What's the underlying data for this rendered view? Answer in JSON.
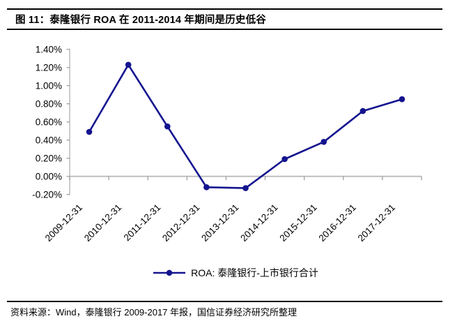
{
  "figure": {
    "title": "图 11：泰隆银行 ROA 在 2011-2014 年期间是历史低谷",
    "source_note": "资料来源：Wind，泰隆银行 2009-2017 年报，国信证券经济研究所整理"
  },
  "legend": {
    "label": "ROA:  泰隆银行-上市银行合计"
  },
  "chart_data": {
    "type": "line",
    "title": "泰隆银行 ROA 在 2011-2014 年期间是历史低谷",
    "categories": [
      "2009-12-31",
      "2010-12-31",
      "2011-12-31",
      "2012-12-31",
      "2013-12-31",
      "2014-12-31",
      "2015-12-31",
      "2016-12-31",
      "2017-12-31"
    ],
    "series": [
      {
        "name": "ROA: 泰隆银行-上市银行合计",
        "values": [
          0.49,
          1.23,
          0.55,
          -0.12,
          -0.13,
          0.19,
          0.38,
          0.72,
          0.85
        ]
      }
    ],
    "unit": "%",
    "xlabel": "",
    "ylabel": "",
    "ylim": [
      -0.2,
      1.4
    ],
    "y_tick_labels": [
      "1.40%",
      "1.20%",
      "1.00%",
      "0.80%",
      "0.60%",
      "0.40%",
      "0.20%",
      "0.00%",
      "-0.20%"
    ],
    "grid": false,
    "legend_position": "bottom",
    "line_color": "#14148f",
    "marker": "circle",
    "axis_color": "#bfbfbf",
    "tick_color": "#a6a6a6",
    "text_color": "#000000"
  }
}
